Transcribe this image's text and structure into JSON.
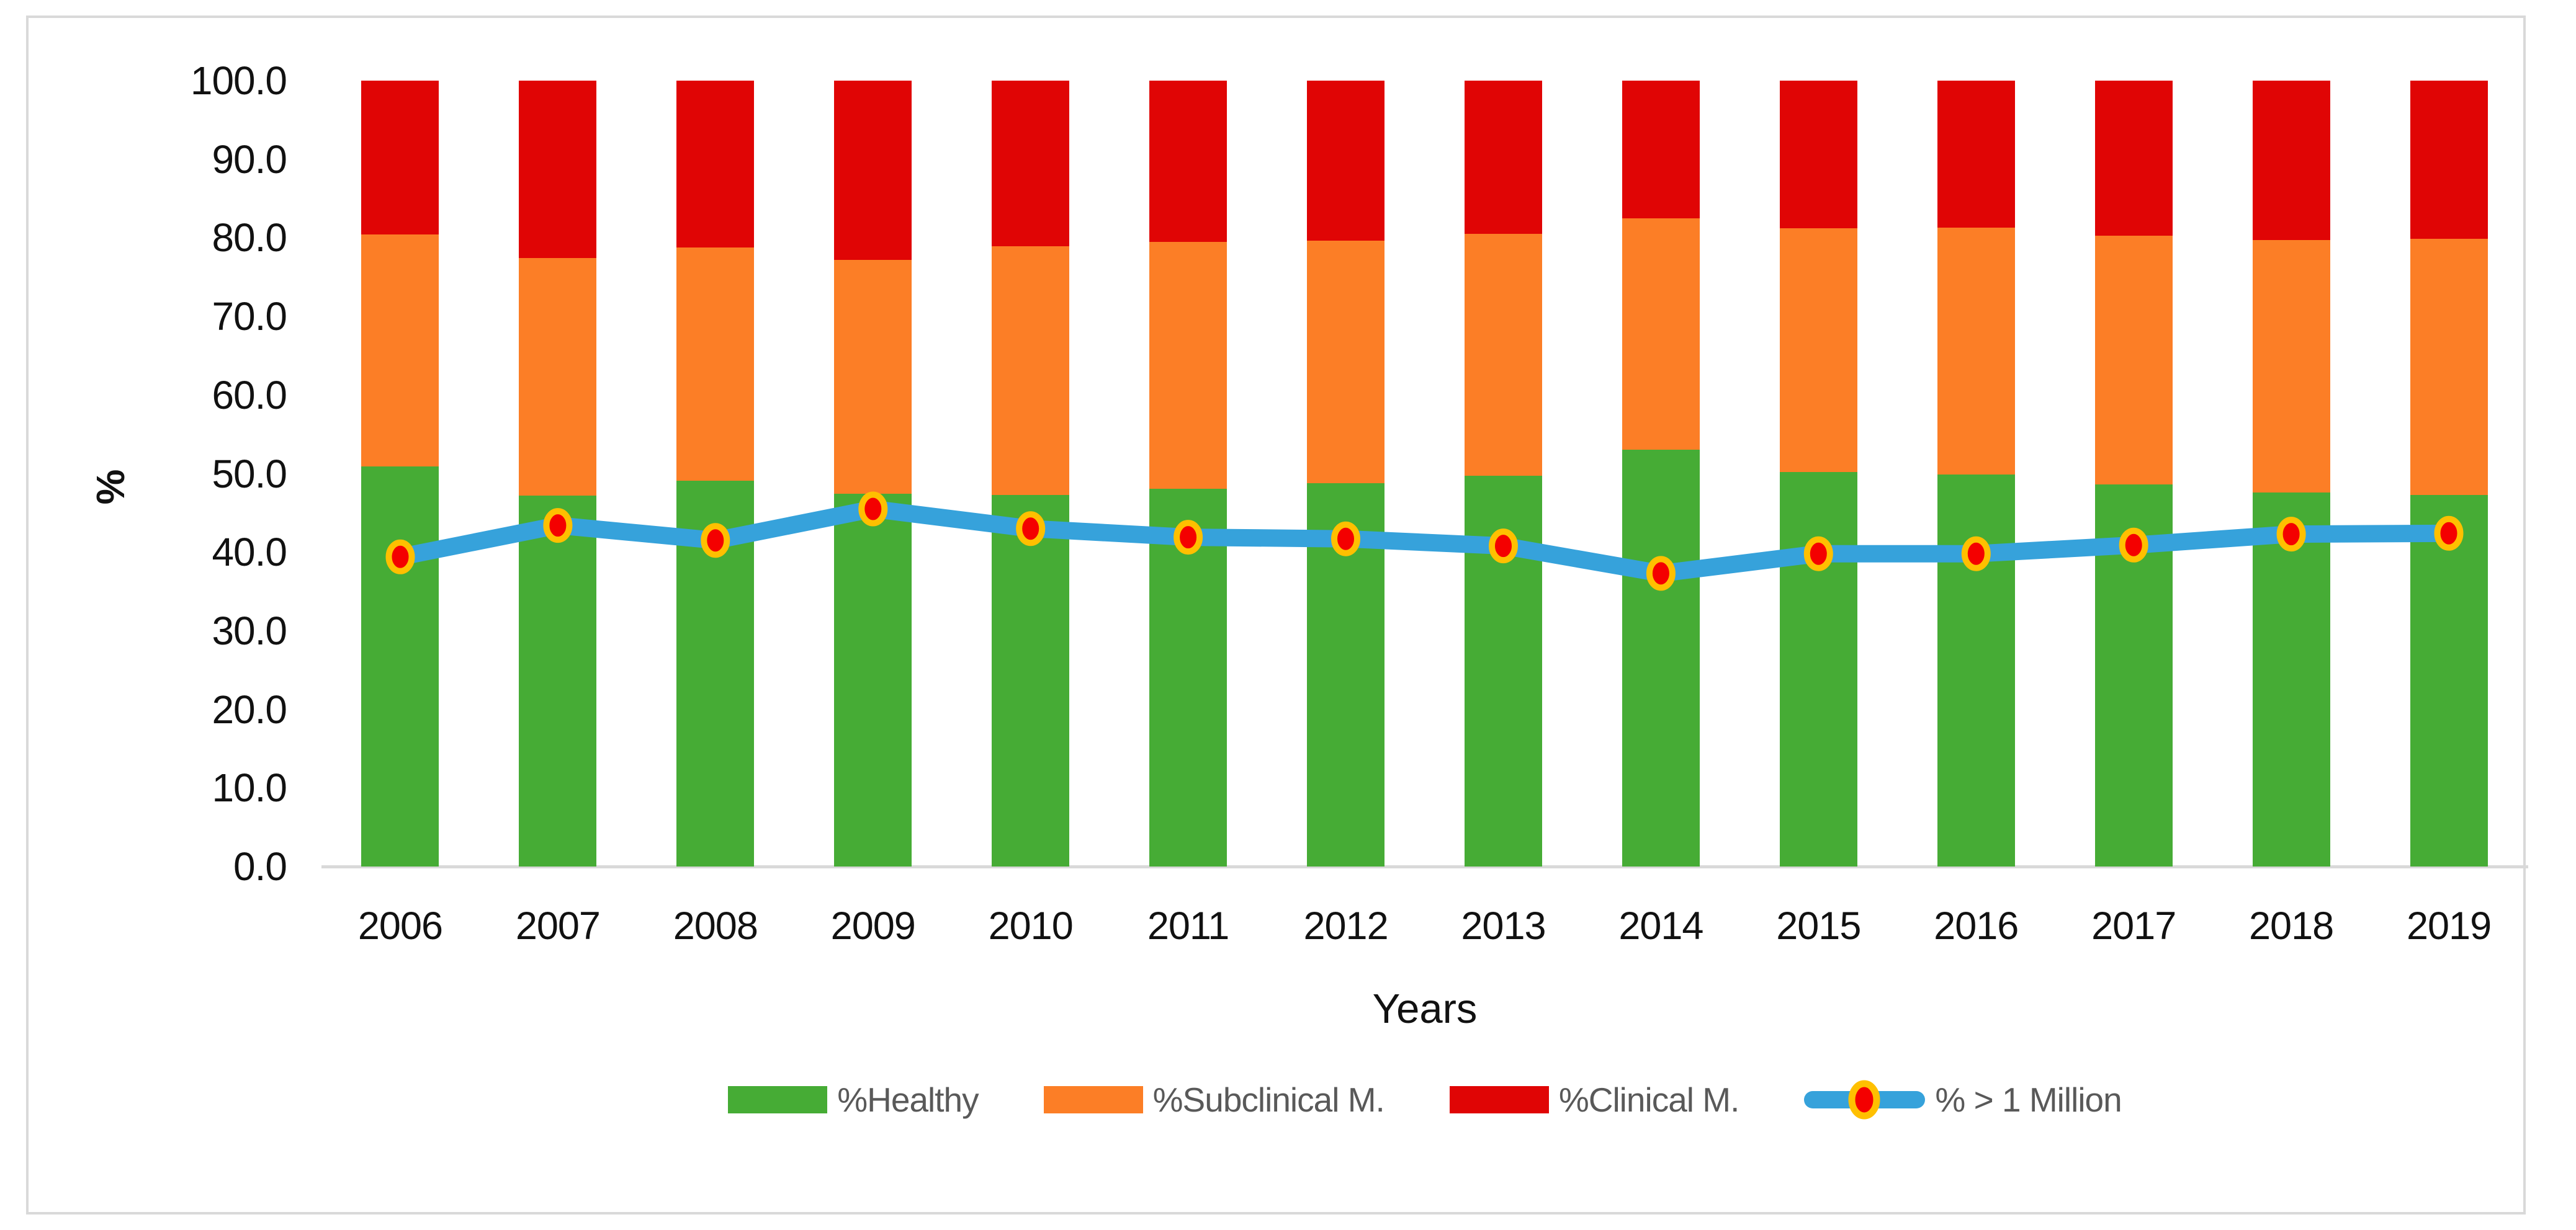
{
  "chart_data": {
    "type": "combo-stacked-bar-line",
    "categories": [
      "2006",
      "2007",
      "2008",
      "2009",
      "2010",
      "2011",
      "2012",
      "2013",
      "2014",
      "2015",
      "2016",
      "2017",
      "2018",
      "2019"
    ],
    "series": [
      {
        "name": "%Healthy",
        "type": "bar",
        "color": "#46AC35",
        "values": [
          50.9,
          47.2,
          49.1,
          47.4,
          47.3,
          48.1,
          48.8,
          49.7,
          53.0,
          50.2,
          49.9,
          48.6,
          47.6,
          47.3
        ]
      },
      {
        "name": "%Subclinical M.",
        "type": "bar",
        "color": "#FC7E26",
        "values": [
          29.5,
          30.2,
          29.7,
          29.8,
          31.6,
          31.4,
          30.8,
          30.8,
          29.5,
          31.0,
          31.4,
          31.7,
          32.1,
          32.6
        ]
      },
      {
        "name": "%Clinical M.",
        "type": "bar",
        "color": "#E00505",
        "values": [
          19.6,
          22.6,
          21.2,
          22.8,
          21.1,
          20.5,
          20.4,
          19.5,
          17.5,
          18.8,
          18.7,
          19.7,
          20.3,
          20.1
        ]
      },
      {
        "name": "% > 1 Million",
        "type": "line",
        "color": "#36A2DB",
        "marker_fill": "#F40000",
        "marker_ring": "#FFC000",
        "values": [
          39.4,
          43.4,
          41.5,
          45.5,
          43.0,
          41.9,
          41.7,
          40.8,
          37.3,
          39.8,
          39.8,
          40.9,
          42.3,
          42.4
        ]
      }
    ],
    "title": "",
    "xlabel": "Years",
    "ylabel": "%",
    "ylim": [
      0,
      100
    ],
    "y_ticks": [
      0,
      10,
      20,
      30,
      40,
      50,
      60,
      70,
      80,
      90,
      100
    ],
    "y_tick_labels": [
      "0.0",
      "10.0",
      "20.0",
      "30.0",
      "40.0",
      "50.0",
      "60.0",
      "70.0",
      "80.0",
      "90.0",
      "100.0"
    ],
    "legend_position": "bottom",
    "grid": false,
    "axis_line_color": "#D9D9D9",
    "panel_border_color": "#D9D9D9",
    "tick_label_color": "#111111",
    "legend_text_color": "#595959"
  }
}
